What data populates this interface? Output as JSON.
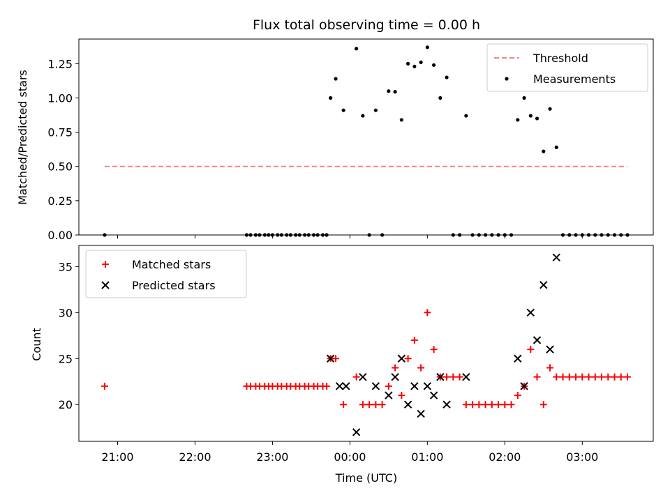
{
  "chart_data": [
    {
      "type": "scatter",
      "title": "Flux total observing time = 0.00 h",
      "ylabel": "Matched/Predicted stars",
      "xlabel": "",
      "xlim": [
        "20:30",
        "03:55"
      ],
      "ylim": [
        0,
        1.43
      ],
      "yticks": [
        "0.00",
        "0.25",
        "0.50",
        "0.75",
        "1.00",
        "1.25"
      ],
      "xticks": [
        "21:00",
        "22:00",
        "23:00",
        "00:00",
        "01:00",
        "02:00",
        "03:00"
      ],
      "legend_position": "upper right",
      "series": [
        {
          "name": "Threshold",
          "kind": "dashed-line",
          "color": "#ff8080",
          "x": [
            "20:50",
            "03:35"
          ],
          "y": [
            0.5,
            0.5
          ]
        },
        {
          "name": "Measurements",
          "kind": "dots",
          "color": "#000000",
          "points": [
            [
              "20:50",
              0
            ],
            [
              "22:40",
              0
            ],
            [
              "22:43",
              0
            ],
            [
              "22:47",
              0
            ],
            [
              "22:50",
              0
            ],
            [
              "22:54",
              0
            ],
            [
              "22:57",
              0
            ],
            [
              "23:00",
              0
            ],
            [
              "23:04",
              0
            ],
            [
              "23:07",
              0
            ],
            [
              "23:11",
              0
            ],
            [
              "23:14",
              0
            ],
            [
              "23:18",
              0
            ],
            [
              "23:21",
              0
            ],
            [
              "23:25",
              0
            ],
            [
              "23:28",
              0
            ],
            [
              "23:32",
              0
            ],
            [
              "23:35",
              0
            ],
            [
              "23:39",
              0
            ],
            [
              "23:42",
              0
            ],
            [
              "23:45",
              1.0
            ],
            [
              "23:49",
              1.14
            ],
            [
              "23:55",
              0.91
            ],
            [
              "00:05",
              1.36
            ],
            [
              "00:10",
              0.87
            ],
            [
              "00:15",
              0
            ],
            [
              "00:20",
              0.91
            ],
            [
              "00:25",
              0
            ],
            [
              "00:30",
              1.05
            ],
            [
              "00:35",
              1.045
            ],
            [
              "00:40",
              0.84
            ],
            [
              "00:45",
              1.25
            ],
            [
              "00:50",
              1.23
            ],
            [
              "00:55",
              1.26
            ],
            [
              "01:00",
              1.37
            ],
            [
              "01:05",
              1.24
            ],
            [
              "01:10",
              1.0
            ],
            [
              "01:15",
              1.15
            ],
            [
              "01:20",
              0
            ],
            [
              "01:25",
              0
            ],
            [
              "01:30",
              0.87
            ],
            [
              "01:35",
              0
            ],
            [
              "01:40",
              0
            ],
            [
              "01:45",
              0
            ],
            [
              "01:50",
              0
            ],
            [
              "01:55",
              0
            ],
            [
              "02:00",
              0
            ],
            [
              "02:05",
              0
            ],
            [
              "02:10",
              0.84
            ],
            [
              "02:15",
              1.0
            ],
            [
              "02:20",
              0.87
            ],
            [
              "02:25",
              0.85
            ],
            [
              "02:30",
              0.61
            ],
            [
              "02:35",
              0.92
            ],
            [
              "02:40",
              0.64
            ],
            [
              "02:45",
              0
            ],
            [
              "02:50",
              0
            ],
            [
              "02:55",
              0
            ],
            [
              "03:00",
              0
            ],
            [
              "03:05",
              0
            ],
            [
              "03:10",
              0
            ],
            [
              "03:15",
              0
            ],
            [
              "03:20",
              0
            ],
            [
              "03:25",
              0
            ],
            [
              "03:30",
              0
            ],
            [
              "03:35",
              0
            ]
          ]
        }
      ]
    },
    {
      "type": "scatter",
      "title": "",
      "xlabel": "Time (UTC)",
      "ylabel": "Count",
      "xlim": [
        "20:30",
        "03:55"
      ],
      "ylim": [
        16,
        37.3
      ],
      "yticks": [
        "20",
        "25",
        "30",
        "35"
      ],
      "xticks": [
        "21:00",
        "22:00",
        "23:00",
        "00:00",
        "01:00",
        "02:00",
        "03:00"
      ],
      "legend_position": "upper left",
      "series": [
        {
          "name": "Matched stars",
          "marker": "plus",
          "color": "#ff0000",
          "points": [
            [
              "20:50",
              22
            ],
            [
              "22:40",
              22
            ],
            [
              "22:43",
              22
            ],
            [
              "22:47",
              22
            ],
            [
              "22:50",
              22
            ],
            [
              "22:54",
              22
            ],
            [
              "22:57",
              22
            ],
            [
              "23:00",
              22
            ],
            [
              "23:04",
              22
            ],
            [
              "23:07",
              22
            ],
            [
              "23:11",
              22
            ],
            [
              "23:14",
              22
            ],
            [
              "23:18",
              22
            ],
            [
              "23:21",
              22
            ],
            [
              "23:25",
              22
            ],
            [
              "23:28",
              22
            ],
            [
              "23:32",
              22
            ],
            [
              "23:35",
              22
            ],
            [
              "23:39",
              22
            ],
            [
              "23:42",
              22
            ],
            [
              "23:45",
              25
            ],
            [
              "23:49",
              25
            ],
            [
              "23:55",
              20
            ],
            [
              "00:05",
              23
            ],
            [
              "00:10",
              20
            ],
            [
              "00:15",
              20
            ],
            [
              "00:20",
              20
            ],
            [
              "00:25",
              20
            ],
            [
              "00:30",
              22
            ],
            [
              "00:35",
              24
            ],
            [
              "00:40",
              21
            ],
            [
              "00:45",
              25
            ],
            [
              "00:50",
              27
            ],
            [
              "00:55",
              24
            ],
            [
              "01:00",
              30
            ],
            [
              "01:05",
              26
            ],
            [
              "01:10",
              23
            ],
            [
              "01:15",
              23
            ],
            [
              "01:20",
              23
            ],
            [
              "01:25",
              23
            ],
            [
              "01:30",
              20
            ],
            [
              "01:35",
              20
            ],
            [
              "01:40",
              20
            ],
            [
              "01:45",
              20
            ],
            [
              "01:50",
              20
            ],
            [
              "01:55",
              20
            ],
            [
              "02:00",
              20
            ],
            [
              "02:05",
              20
            ],
            [
              "02:10",
              21
            ],
            [
              "02:15",
              22
            ],
            [
              "02:20",
              26
            ],
            [
              "02:25",
              23
            ],
            [
              "02:30",
              20
            ],
            [
              "02:35",
              24
            ],
            [
              "02:40",
              23
            ],
            [
              "02:45",
              23
            ],
            [
              "02:50",
              23
            ],
            [
              "02:55",
              23
            ],
            [
              "03:00",
              23
            ],
            [
              "03:05",
              23
            ],
            [
              "03:10",
              23
            ],
            [
              "03:15",
              23
            ],
            [
              "03:20",
              23
            ],
            [
              "03:25",
              23
            ],
            [
              "03:30",
              23
            ],
            [
              "03:35",
              23
            ]
          ]
        },
        {
          "name": "Predicted stars",
          "marker": "x",
          "color": "#000000",
          "points": [
            [
              "23:45",
              25
            ],
            [
              "23:52",
              22
            ],
            [
              "23:57",
              22
            ],
            [
              "00:05",
              17
            ],
            [
              "00:10",
              23
            ],
            [
              "00:20",
              22
            ],
            [
              "00:30",
              21
            ],
            [
              "00:35",
              23
            ],
            [
              "00:40",
              25
            ],
            [
              "00:45",
              20
            ],
            [
              "00:50",
              22
            ],
            [
              "00:55",
              19
            ],
            [
              "01:00",
              22
            ],
            [
              "01:05",
              21
            ],
            [
              "01:10",
              23
            ],
            [
              "01:15",
              20
            ],
            [
              "01:30",
              23
            ],
            [
              "02:10",
              25
            ],
            [
              "02:15",
              22
            ],
            [
              "02:20",
              30
            ],
            [
              "02:25",
              27
            ],
            [
              "02:30",
              33
            ],
            [
              "02:35",
              26
            ],
            [
              "02:40",
              36
            ]
          ]
        }
      ]
    }
  ]
}
